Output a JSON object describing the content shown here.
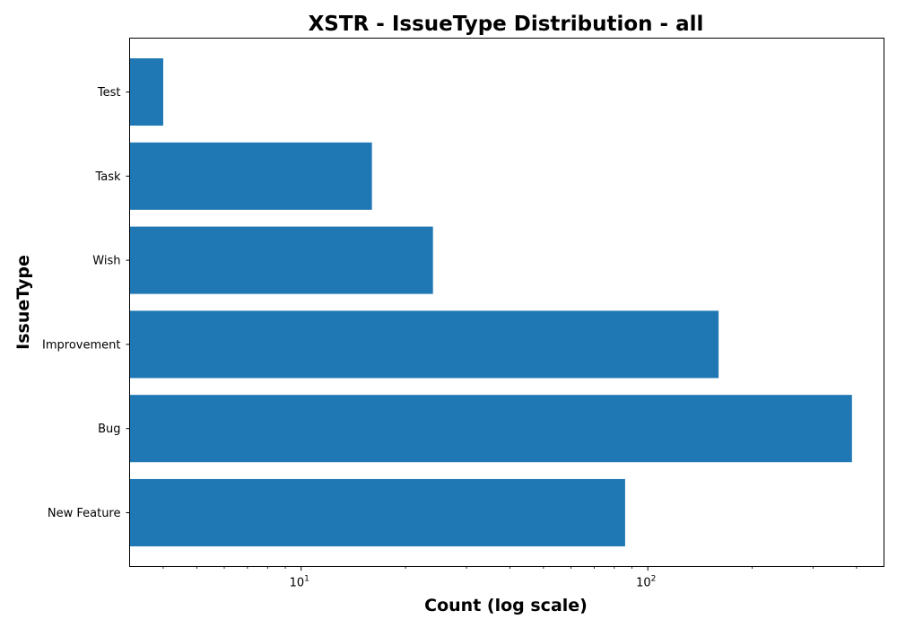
{
  "chart_data": {
    "type": "bar",
    "orientation": "horizontal",
    "title": "XSTR - IssueType Distribution - all",
    "xlabel": "Count (log scale)",
    "ylabel": "IssueType",
    "x_scale": "log",
    "xlim": [
      3.2,
      480
    ],
    "categories": [
      "New Feature",
      "Bug",
      "Improvement",
      "Wish",
      "Task",
      "Test"
    ],
    "values": [
      86,
      388,
      160,
      24,
      16,
      4
    ],
    "x_major_ticks": [
      {
        "value": 10,
        "base": "10",
        "exp": "1"
      },
      {
        "value": 100,
        "base": "10",
        "exp": "2"
      }
    ],
    "x_minor_ticks": [
      4,
      5,
      6,
      7,
      8,
      9,
      20,
      30,
      40,
      50,
      60,
      70,
      80,
      90,
      200,
      300,
      400
    ],
    "bar_color": "#1f77b4",
    "grid": false,
    "legend": "none"
  }
}
